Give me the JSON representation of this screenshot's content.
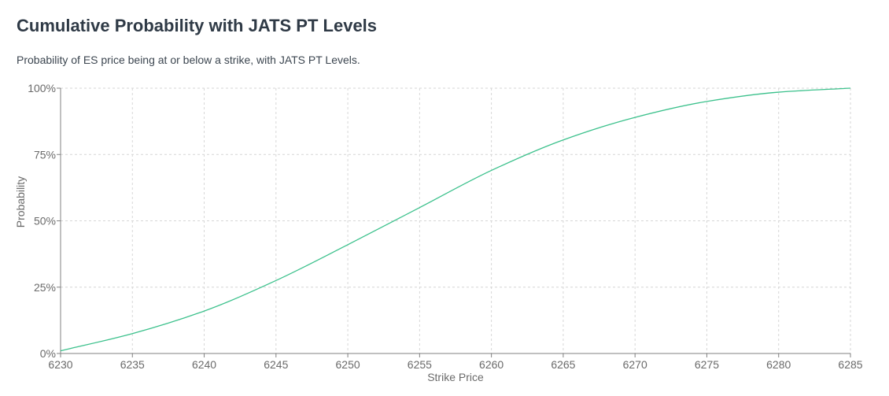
{
  "title": "Cumulative Probability with JATS PT Levels",
  "subtitle": "Probability of ES price being at or below a strike, with JATS PT Levels.",
  "colors": {
    "line": "#3cc18c",
    "grid": "#d6d6d6",
    "axis": "#808080"
  },
  "chart_data": {
    "type": "line",
    "title": "Cumulative Probability with JATS PT Levels",
    "subtitle": "Probability of ES price being at or below a strike, with JATS PT Levels.",
    "xlabel": "Strike Price",
    "ylabel": "Probability",
    "xlim": [
      6230,
      6285
    ],
    "ylim": [
      0,
      100
    ],
    "x_ticks": [
      6230,
      6235,
      6240,
      6245,
      6250,
      6255,
      6260,
      6265,
      6270,
      6275,
      6280,
      6285
    ],
    "y_ticks": [
      0,
      25,
      50,
      75,
      100
    ],
    "y_tick_labels": [
      "0%",
      "25%",
      "50%",
      "75%",
      "100%"
    ],
    "grid": true,
    "series": [
      {
        "x": [
          6230,
          6235,
          6240,
          6245,
          6250,
          6255,
          6260,
          6265,
          6270,
          6275,
          6280,
          6285
        ],
        "y": [
          1,
          7.5,
          16,
          27.5,
          41,
          55,
          69,
          80.5,
          89,
          95,
          98.5,
          100
        ]
      }
    ]
  }
}
